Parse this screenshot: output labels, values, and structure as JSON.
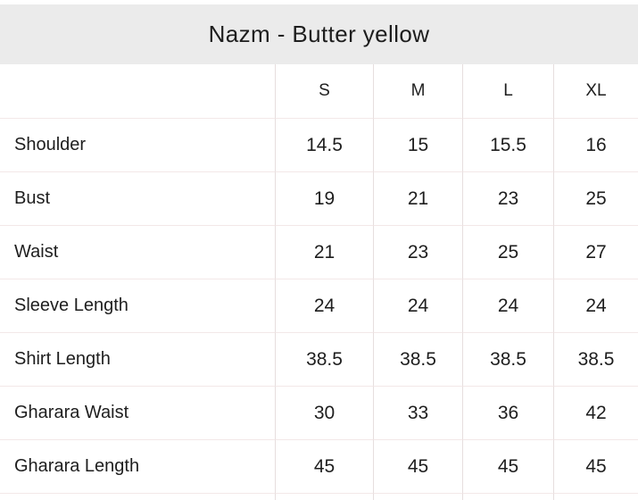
{
  "title": "Nazm - Butter yellow",
  "chart_data": {
    "type": "table",
    "title": "Nazm - Butter yellow",
    "columns": [
      "S",
      "M",
      "L",
      "XL"
    ],
    "rows": [
      {
        "label": "Shoulder",
        "values": [
          "14.5",
          "15",
          "15.5",
          "16"
        ]
      },
      {
        "label": "Bust",
        "values": [
          "19",
          "21",
          "23",
          "25"
        ]
      },
      {
        "label": "Waist",
        "values": [
          "21",
          "23",
          "25",
          "27"
        ]
      },
      {
        "label": "Sleeve Length",
        "values": [
          "24",
          "24",
          "24",
          "24"
        ]
      },
      {
        "label": "Shirt Length",
        "values": [
          "38.5",
          "38.5",
          "38.5",
          "38.5"
        ]
      },
      {
        "label": "Gharara Waist",
        "values": [
          "30",
          "33",
          "36",
          "42"
        ]
      },
      {
        "label": "Gharara Length",
        "values": [
          "45",
          "45",
          "45",
          "45"
        ]
      }
    ]
  },
  "colors": {
    "title_band_bg": "#ebebeb",
    "text_primary": "#1e1e1e",
    "row_divider": "#f3e8e8",
    "column_divider": "#e6dede",
    "background": "#ffffff"
  }
}
